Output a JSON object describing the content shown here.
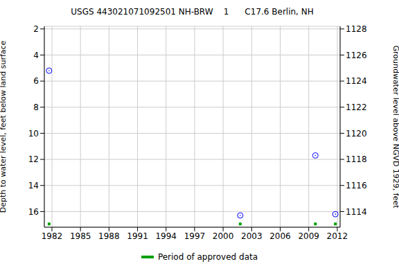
{
  "chart_data": {
    "type": "scatter",
    "title": "USGS 443021071092501 NH-BRW    1      C17.6 Berlin, NH",
    "y_label": "Depth to water level, feet below land surface",
    "y2_label": "Groundwater level above NGVD 1929, feet",
    "xlim": [
      1981.2,
      2012.3
    ],
    "xticks": [
      1982,
      1985,
      1988,
      1991,
      1994,
      1997,
      2000,
      2003,
      2006,
      2009,
      2012
    ],
    "ylim": [
      1.8,
      17.2
    ],
    "yticks": [
      2,
      4,
      6,
      8,
      10,
      12,
      14,
      16
    ],
    "y2lim": [
      1112.8,
      1128.2
    ],
    "y2ticks": [
      1114,
      1116,
      1118,
      1120,
      1122,
      1124,
      1126,
      1128
    ],
    "grid": true,
    "series": [
      {
        "color": "#0000ff",
        "marker": "circle-open",
        "x": [
          1981.7,
          2001.8,
          2009.7,
          2011.8
        ],
        "values": [
          5.2,
          16.3,
          11.7,
          16.2
        ]
      },
      {
        "name": "Period of approved data",
        "color": "#00a000",
        "marker": "square",
        "x": [
          1981.7,
          2001.8,
          2009.7,
          2011.8
        ],
        "values": [
          16.95,
          16.95,
          16.95,
          16.95
        ]
      }
    ]
  }
}
